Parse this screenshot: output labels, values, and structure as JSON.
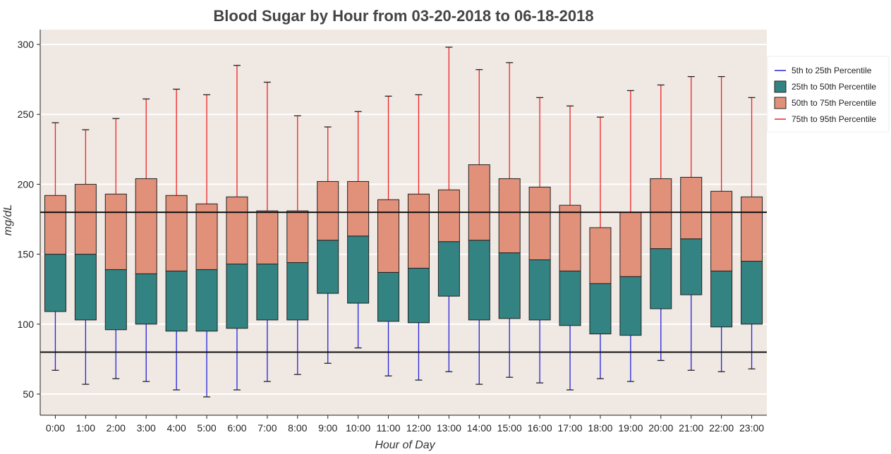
{
  "chart_data": {
    "type": "box",
    "title": "Blood Sugar by Hour from 03-20-2018 to 06-18-2018",
    "xlabel": "Hour of Day",
    "ylabel": "mg/dL",
    "ylim": [
      38,
      310
    ],
    "yticks": [
      50,
      100,
      150,
      200,
      250,
      300
    ],
    "grid": true,
    "legend_position": "right",
    "reference_lines": [
      80,
      180
    ],
    "categories": [
      "0:00",
      "1:00",
      "2:00",
      "3:00",
      "4:00",
      "5:00",
      "6:00",
      "7:00",
      "8:00",
      "9:00",
      "10:00",
      "11:00",
      "12:00",
      "13:00",
      "14:00",
      "15:00",
      "16:00",
      "17:00",
      "18:00",
      "19:00",
      "20:00",
      "21:00",
      "22:00",
      "23:00"
    ],
    "series": [
      {
        "name": "5th to 25th Percentile",
        "color": "#2222dd",
        "values": [
          [
            67,
            109
          ],
          [
            57,
            103
          ],
          [
            61,
            96
          ],
          [
            59,
            100
          ],
          [
            53,
            95
          ],
          [
            48,
            95
          ],
          [
            53,
            97
          ],
          [
            59,
            103
          ],
          [
            64,
            103
          ],
          [
            72,
            122
          ],
          [
            83,
            115
          ],
          [
            63,
            102
          ],
          [
            60,
            101
          ],
          [
            66,
            120
          ],
          [
            57,
            103
          ],
          [
            62,
            104
          ],
          [
            58,
            103
          ],
          [
            53,
            99
          ],
          [
            61,
            93
          ],
          [
            59,
            92
          ],
          [
            74,
            111
          ],
          [
            67,
            121
          ],
          [
            66,
            98
          ],
          [
            68,
            100
          ]
        ]
      },
      {
        "name": "25th to 50th Percentile",
        "color": "#338383",
        "values": [
          [
            109,
            150
          ],
          [
            103,
            150
          ],
          [
            96,
            139
          ],
          [
            100,
            136
          ],
          [
            95,
            138
          ],
          [
            95,
            139
          ],
          [
            97,
            143
          ],
          [
            103,
            143
          ],
          [
            103,
            144
          ],
          [
            122,
            160
          ],
          [
            115,
            163
          ],
          [
            102,
            137
          ],
          [
            101,
            140
          ],
          [
            120,
            159
          ],
          [
            103,
            160
          ],
          [
            104,
            151
          ],
          [
            103,
            146
          ],
          [
            99,
            138
          ],
          [
            93,
            129
          ],
          [
            92,
            134
          ],
          [
            111,
            154
          ],
          [
            121,
            161
          ],
          [
            98,
            138
          ],
          [
            100,
            145
          ]
        ]
      },
      {
        "name": "50th to 75th Percentile",
        "color": "#e19079",
        "values": [
          [
            150,
            192
          ],
          [
            150,
            200
          ],
          [
            139,
            193
          ],
          [
            136,
            204
          ],
          [
            138,
            192
          ],
          [
            139,
            186
          ],
          [
            143,
            191
          ],
          [
            143,
            181
          ],
          [
            144,
            181
          ],
          [
            160,
            202
          ],
          [
            163,
            202
          ],
          [
            137,
            189
          ],
          [
            140,
            193
          ],
          [
            159,
            196
          ],
          [
            160,
            214
          ],
          [
            151,
            204
          ],
          [
            146,
            198
          ],
          [
            138,
            185
          ],
          [
            129,
            169
          ],
          [
            134,
            180
          ],
          [
            154,
            204
          ],
          [
            161,
            205
          ],
          [
            138,
            195
          ],
          [
            145,
            191
          ]
        ]
      },
      {
        "name": "75th to 95th Percentile",
        "color": "#ee2222",
        "values": [
          [
            192,
            244
          ],
          [
            200,
            239
          ],
          [
            193,
            247
          ],
          [
            204,
            261
          ],
          [
            192,
            268
          ],
          [
            186,
            264
          ],
          [
            191,
            285
          ],
          [
            181,
            273
          ],
          [
            181,
            249
          ],
          [
            202,
            241
          ],
          [
            202,
            252
          ],
          [
            189,
            263
          ],
          [
            193,
            264
          ],
          [
            196,
            298
          ],
          [
            214,
            282
          ],
          [
            204,
            287
          ],
          [
            198,
            262
          ],
          [
            185,
            256
          ],
          [
            169,
            248
          ],
          [
            180,
            267
          ],
          [
            204,
            271
          ],
          [
            205,
            277
          ],
          [
            195,
            277
          ],
          [
            191,
            262
          ]
        ]
      }
    ]
  }
}
